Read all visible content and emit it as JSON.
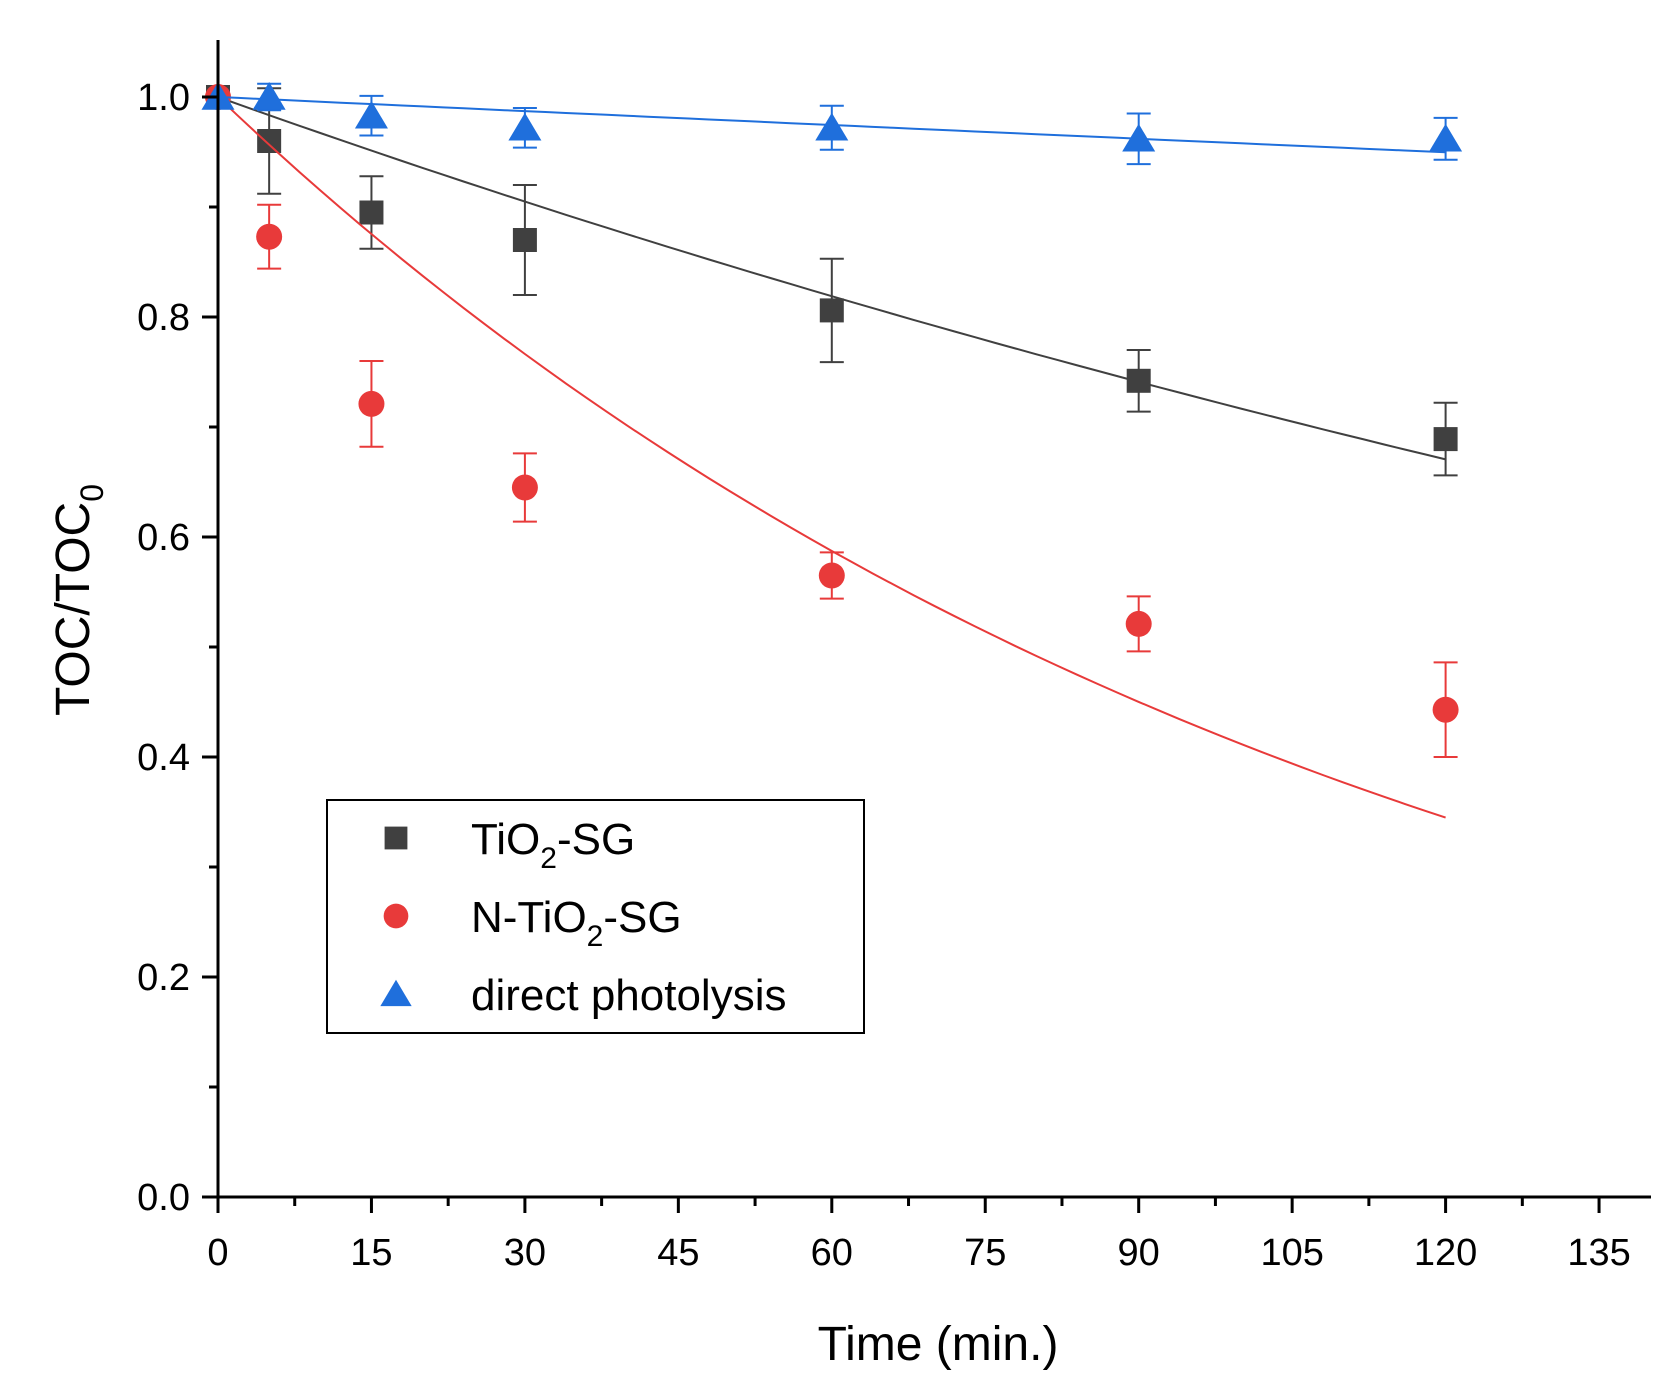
{
  "chart_data": {
    "type": "scatter",
    "xlabel": "Time (min.)",
    "ylabel": "TOC/TOC",
    "ylabel_sub": "0",
    "xlim": [
      0,
      140
    ],
    "ylim": [
      0,
      1.05
    ],
    "xticks": [
      0,
      15,
      30,
      45,
      60,
      75,
      90,
      105,
      120,
      135
    ],
    "xtick_labels": [
      "0",
      "15",
      "30",
      "45",
      "60",
      "75",
      "90",
      "105",
      "120",
      "135"
    ],
    "yticks": [
      0.0,
      0.2,
      0.4,
      0.6,
      0.8,
      1.0
    ],
    "ytick_labels": [
      "0.0",
      "0.2",
      "0.4",
      "0.6",
      "0.8",
      "1.0"
    ],
    "legend_position": "lower-left",
    "series": [
      {
        "name": "TiO2-SG",
        "legend_main": "TiO",
        "legend_sub": "2",
        "legend_rest": "-SG",
        "marker": "square",
        "color": "#404040",
        "x": [
          0,
          5,
          15,
          30,
          60,
          90,
          120
        ],
        "y": [
          1.0,
          0.96,
          0.895,
          0.87,
          0.806,
          0.742,
          0.689
        ],
        "err": [
          0.0,
          0.048,
          0.033,
          0.05,
          0.047,
          0.028,
          0.033
        ],
        "fit_rate": 0.00333
      },
      {
        "name": "N-TiO2-SG",
        "legend_main": "N-TiO",
        "legend_sub": "2",
        "legend_rest": "-SG",
        "marker": "circle",
        "color": "#e83a3a",
        "x": [
          0,
          5,
          15,
          30,
          60,
          90,
          120
        ],
        "y": [
          1.0,
          0.873,
          0.721,
          0.645,
          0.565,
          0.521,
          0.443
        ],
        "err": [
          0.0,
          0.029,
          0.039,
          0.031,
          0.021,
          0.025,
          0.043
        ],
        "fit_rate": 0.00887
      },
      {
        "name": "direct photolysis",
        "legend_main": "direct photolysis",
        "legend_sub": "",
        "legend_rest": "",
        "marker": "triangle",
        "color": "#1f6fdc",
        "x": [
          0,
          5,
          15,
          30,
          60,
          90,
          120
        ],
        "y": [
          1.0,
          1.0,
          0.983,
          0.972,
          0.972,
          0.962,
          0.962
        ],
        "err": [
          0.0,
          0.012,
          0.018,
          0.018,
          0.02,
          0.023,
          0.019
        ],
        "fit_rate": 0.00043
      }
    ]
  }
}
